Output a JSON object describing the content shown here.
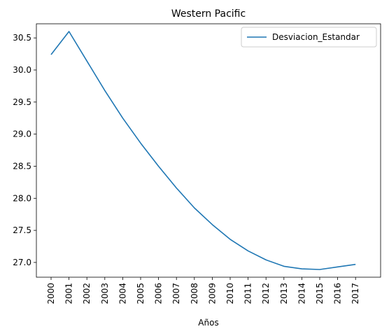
{
  "chart_data": {
    "type": "line",
    "title": "Western Pacific",
    "xlabel": "Años",
    "ylabel": "",
    "x": [
      "2000",
      "2001",
      "2002",
      "2003",
      "2004",
      "2005",
      "2006",
      "2007",
      "2008",
      "2009",
      "2010",
      "2011",
      "2012",
      "2013",
      "2014",
      "2015",
      "2016",
      "2017"
    ],
    "series": [
      {
        "name": "Desviacion_Estandar",
        "color": "#1f77b4",
        "values": [
          30.24,
          30.6,
          30.14,
          29.68,
          29.25,
          28.86,
          28.5,
          28.16,
          27.85,
          27.59,
          27.36,
          27.18,
          27.04,
          26.94,
          26.9,
          26.89,
          26.93,
          26.97
        ]
      }
    ],
    "ylim": [
      26.77,
      30.72
    ],
    "yticks": [
      "27.0",
      "27.5",
      "28.0",
      "28.5",
      "29.0",
      "29.5",
      "30.0",
      "30.5"
    ],
    "grid": false,
    "legend": "top-right",
    "xtick_rotation": 90
  }
}
